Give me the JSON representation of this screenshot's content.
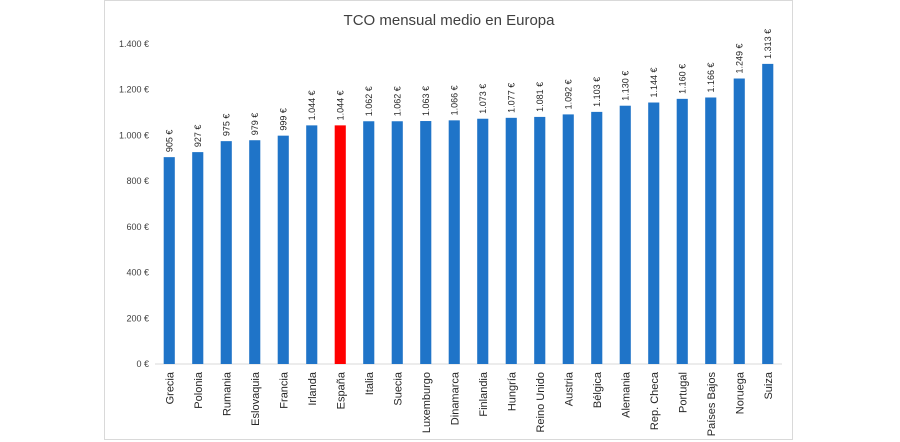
{
  "chart_data": {
    "type": "bar",
    "title": "TCO mensual medio en Europa",
    "xlabel": "",
    "ylabel": "",
    "ylim": [
      0,
      1400
    ],
    "y_ticks": [
      0,
      200,
      400,
      600,
      800,
      1000,
      1200,
      1400
    ],
    "y_tick_labels": [
      "0 €",
      "200 €",
      "400 €",
      "600 €",
      "800 €",
      "1.000 €",
      "1.200 €",
      "1.400 €"
    ],
    "grid": false,
    "legend": "none",
    "categories": [
      "Grecia",
      "Polonia",
      "Rumania",
      "Eslovaquia",
      "Francia",
      "Irlanda",
      "España",
      "Italia",
      "Suecia",
      "Luxemburgo",
      "Dinamarca",
      "Finlandia",
      "Hungría",
      "Reino Unido",
      "Austria",
      "Bélgica",
      "Alemania",
      "Rep. Checa",
      "Portugal",
      "Países Bajos",
      "Noruega",
      "Suiza"
    ],
    "values": [
      905,
      927,
      975,
      979,
      999,
      1044,
      1044,
      1062,
      1062,
      1063,
      1066,
      1073,
      1077,
      1081,
      1092,
      1103,
      1130,
      1144,
      1160,
      1166,
      1249,
      1313
    ],
    "data_labels": [
      "905 €",
      "927 €",
      "975 €",
      "979 €",
      "999 €",
      "1.044 €",
      "1.044 €",
      "1.062 €",
      "1.062 €",
      "1.063 €",
      "1.066 €",
      "1.073 €",
      "1.077 €",
      "1.081 €",
      "1.092 €",
      "1.103 €",
      "1.130 €",
      "1.144 €",
      "1.160 €",
      "1.166 €",
      "1.249 €",
      "1.313 €"
    ],
    "colors": {
      "default": "#1f74c8",
      "highlight": "#ff0000",
      "highlight_category": "España",
      "axis": "#d9d9d9",
      "text": "#404040"
    }
  }
}
